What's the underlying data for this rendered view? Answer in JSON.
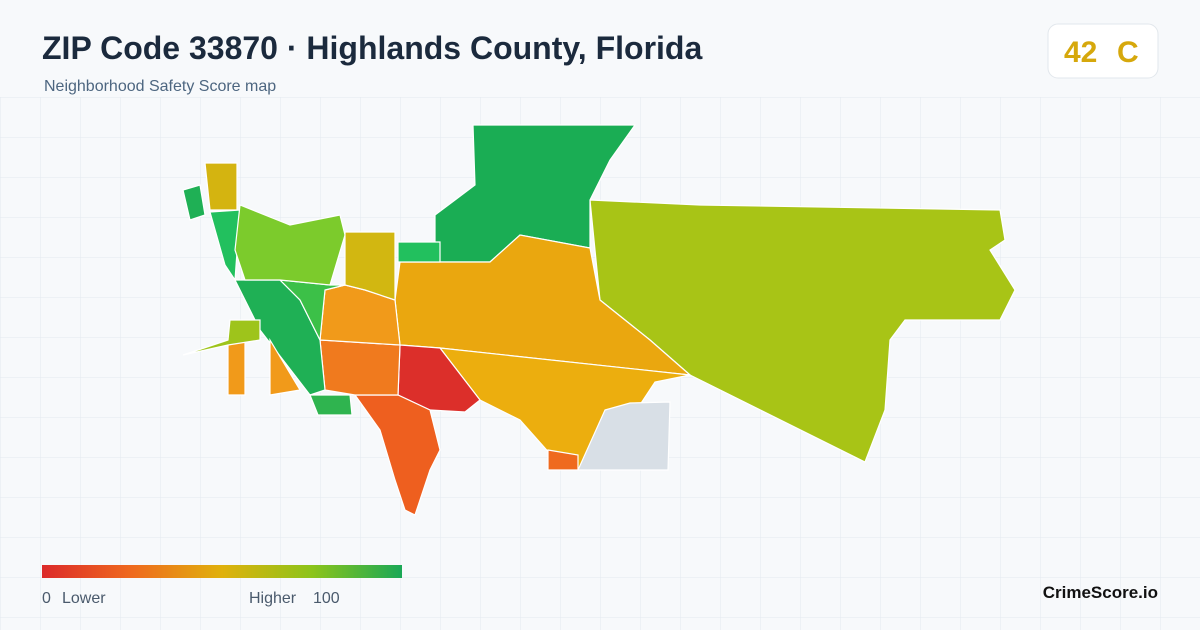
{
  "header": {
    "title": "ZIP Code 33870 · Highlands County, Florida",
    "subtitle": "Neighborhood Safety Score map"
  },
  "score": {
    "value": 42,
    "grade": "C"
  },
  "legend": {
    "min": 0,
    "min_label": "Lower",
    "max_label": "Higher",
    "max": 100
  },
  "footer": {
    "brand": "CrimeScore.io"
  }
}
